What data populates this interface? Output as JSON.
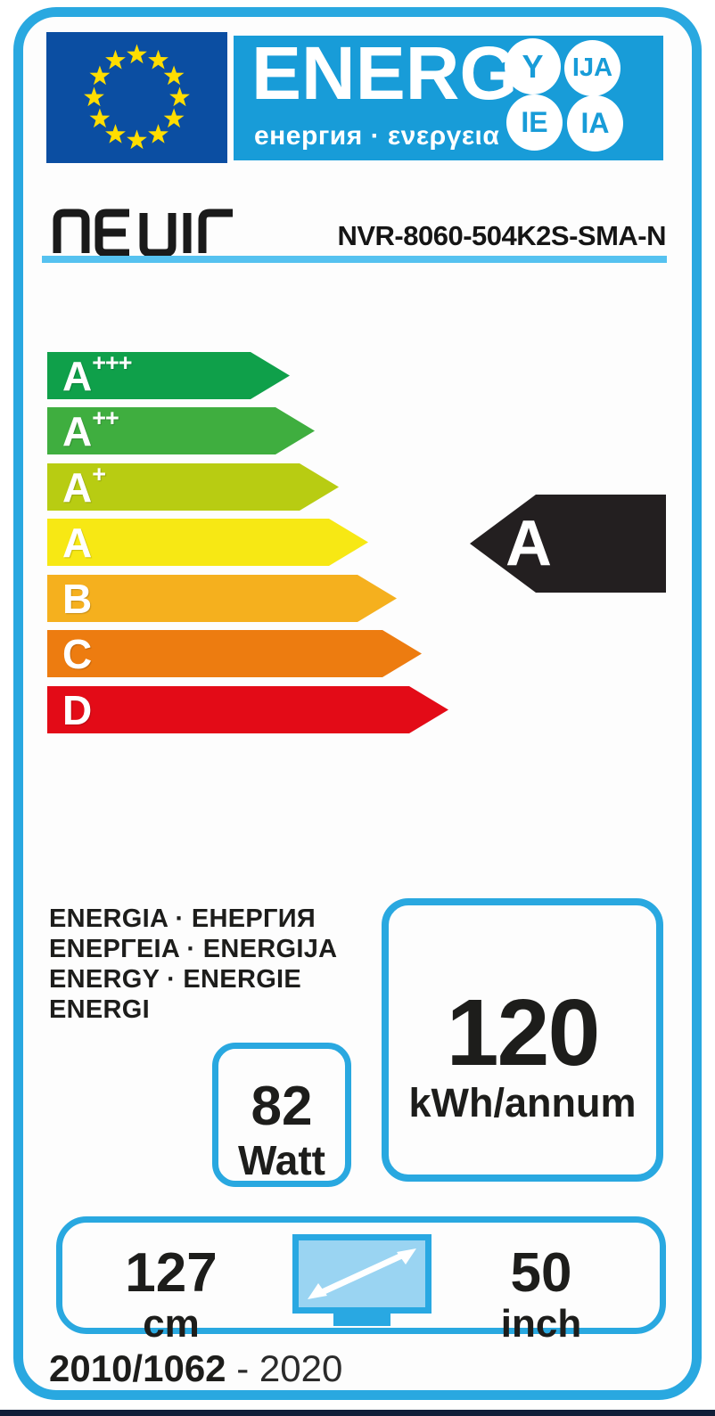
{
  "header": {
    "energ_text": "ENERG",
    "subtitle": "енергия · ενεργεια",
    "suffix_circles": [
      "Y",
      "IJA",
      "IE",
      "IA"
    ],
    "colors": {
      "band": "#189cd8",
      "flag_bg": "#0b4ea2",
      "star": "#ffdd00",
      "border": "#29a8e0"
    }
  },
  "brand": {
    "name": "nevir",
    "model": "NVR-8060-504K2S-SMA-N"
  },
  "rating_scale": [
    {
      "grade": "A",
      "plus": "+++",
      "color": "#0fa04a"
    },
    {
      "grade": "A",
      "plus": "++",
      "color": "#3fae3f"
    },
    {
      "grade": "A",
      "plus": "+",
      "color": "#b8cc12"
    },
    {
      "grade": "A",
      "plus": "",
      "color": "#f7e814"
    },
    {
      "grade": "B",
      "plus": "",
      "color": "#f5b01e"
    },
    {
      "grade": "C",
      "plus": "",
      "color": "#ed7c10"
    },
    {
      "grade": "D",
      "plus": "",
      "color": "#e30b17"
    }
  ],
  "assigned_rating": {
    "letter": "A",
    "arrow_color": "#231f20"
  },
  "energy_words": {
    "line1": "ENERGIA · ЕНЕРГИЯ",
    "line2": "ENEPΓEIA · ENERGIJA",
    "line3": "ENERGY · ENERGIE",
    "line4": "ENERGI"
  },
  "consumption": {
    "value": "120",
    "unit": "kWh/annum"
  },
  "power": {
    "value": "82",
    "unit": "Watt"
  },
  "screen_size": {
    "cm_value": "127",
    "cm_unit": "cm",
    "inch_value": "50",
    "inch_unit": "inch"
  },
  "regulation": {
    "code": "2010/1062",
    "suffix": " - 2020"
  }
}
